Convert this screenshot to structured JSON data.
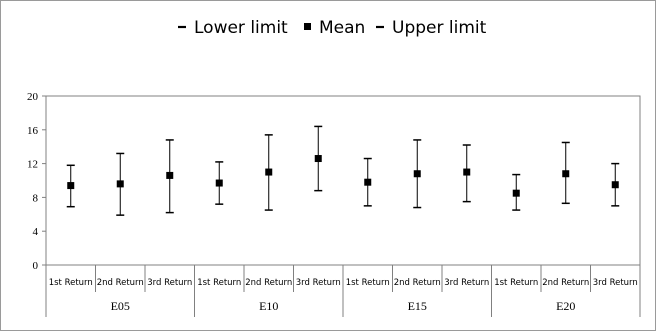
{
  "chart_data": {
    "type": "scatter",
    "legend": {
      "position": "top",
      "entries": [
        {
          "name": "Lower limit",
          "marker": "dash"
        },
        {
          "name": "Mean",
          "marker": "square"
        },
        {
          "name": "Upper limit",
          "marker": "dash"
        }
      ]
    },
    "ylim": [
      0,
      20
    ],
    "yticks": [
      "0",
      "4",
      "8",
      "12",
      "16",
      "20"
    ],
    "grid": false,
    "groups": [
      "E05",
      "E10",
      "E15",
      "E20"
    ],
    "categories": [
      "1st Return",
      "2nd Return",
      "3rd Return",
      "1st Return",
      "2nd Return",
      "3rd Return",
      "1st Return",
      "2nd Return",
      "3rd Return",
      "1st Return",
      "2nd Return",
      "3rd Return"
    ],
    "series": [
      {
        "name": "Lower limit",
        "values": [
          6.9,
          5.9,
          6.2,
          7.2,
          6.5,
          8.8,
          7.0,
          6.8,
          7.5,
          6.5,
          7.3,
          7.0
        ]
      },
      {
        "name": "Mean",
        "values": [
          9.4,
          9.6,
          10.6,
          9.7,
          11.0,
          12.6,
          9.8,
          10.8,
          11.0,
          8.5,
          10.8,
          9.5
        ]
      },
      {
        "name": "Upper limit",
        "values": [
          11.8,
          13.2,
          14.8,
          12.2,
          15.4,
          16.4,
          12.6,
          14.8,
          14.2,
          10.7,
          14.5,
          12.0
        ]
      }
    ],
    "colors": {
      "marker": "#000000",
      "axis": "#808080"
    }
  }
}
